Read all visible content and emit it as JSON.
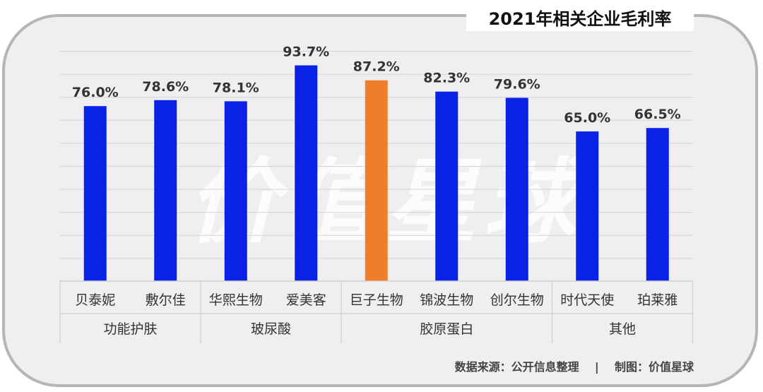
{
  "title": "2021年相关企业毛利率",
  "watermark": "价值星球",
  "footer": {
    "source": "数据来源：公开信息整理",
    "separator": "|",
    "maker": "制图：价值星球"
  },
  "colors": {
    "bar": "#0a22e6",
    "highlight": "#ef7d2c",
    "grid": "#d4d4d4",
    "background": "#efefef",
    "border": "#b5b5b5"
  },
  "chart_data": {
    "type": "bar",
    "title": "2021年相关企业毛利率",
    "categories": [
      "贝泰妮",
      "敷尔佳",
      "华熙生物",
      "爱美客",
      "巨子生物",
      "锦波生物",
      "创尔生物",
      "时代天使",
      "珀莱雅"
    ],
    "values": [
      76.0,
      78.6,
      78.1,
      93.7,
      87.2,
      82.3,
      79.6,
      65.0,
      66.5
    ],
    "value_labels": [
      "76.0%",
      "78.6%",
      "78.1%",
      "93.7%",
      "87.2%",
      "82.3%",
      "79.6%",
      "65.0%",
      "66.5%"
    ],
    "highlight": "巨子生物",
    "groups": [
      {
        "name": "功能护肤",
        "span": 2
      },
      {
        "name": "玻尿酸",
        "span": 2
      },
      {
        "name": "胶原蛋白",
        "span": 3
      },
      {
        "name": "其他",
        "span": 2
      }
    ],
    "ylim": [
      0,
      100
    ],
    "grid": true,
    "legend": "none"
  }
}
